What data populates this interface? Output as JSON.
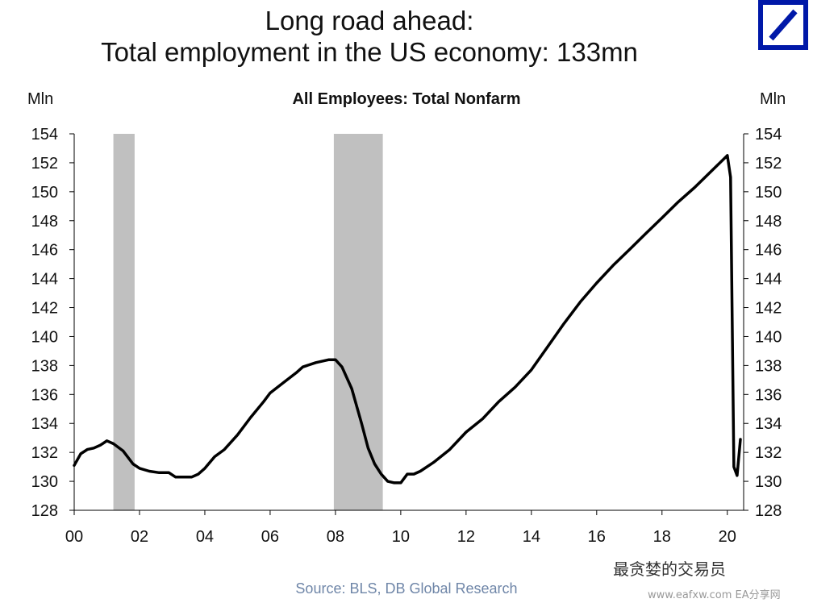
{
  "header": {
    "title_line1": "Long road ahead:",
    "title_line2": "Total employment in the US economy: 133mn"
  },
  "units": {
    "left": "Mln",
    "right": "Mln"
  },
  "source": "Source: BLS, DB Global Research",
  "watermark": {
    "text": "最贪婪的交易员",
    "url": "www.eafxw.com  EA分享网"
  },
  "colors": {
    "line": "#000000",
    "recession": "#c0c0c0",
    "logo": "#0018a8",
    "source": "#6f86a8"
  },
  "chart_data": {
    "type": "line",
    "title": "All Employees: Total Nonfarm",
    "ylabel": "Mln",
    "xlim": [
      2000,
      2020.5
    ],
    "ylim": [
      128,
      154
    ],
    "x_ticks": [
      2000,
      2002,
      2004,
      2006,
      2008,
      2010,
      2012,
      2014,
      2016,
      2018,
      2020
    ],
    "x_tick_labels": [
      "00",
      "02",
      "04",
      "06",
      "08",
      "10",
      "12",
      "14",
      "16",
      "18",
      "20"
    ],
    "y_ticks": [
      128,
      130,
      132,
      134,
      136,
      138,
      140,
      142,
      144,
      146,
      148,
      150,
      152,
      154
    ],
    "y_tick_labels": [
      "128",
      "130",
      "132",
      "134",
      "136",
      "138",
      "140",
      "142",
      "144",
      "146",
      "148",
      "150",
      "152",
      "154"
    ],
    "recessions": [
      [
        2001.2,
        2001.85
      ],
      [
        2007.95,
        2009.45
      ]
    ],
    "grid": false,
    "series": [
      {
        "x": [
          2000.0,
          2000.2,
          2000.4,
          2000.6,
          2000.8,
          2001.0,
          2001.2,
          2001.5,
          2001.8,
          2002.0,
          2002.3,
          2002.6,
          2002.9,
          2003.1,
          2003.3,
          2003.6,
          2003.8,
          2004.0,
          2004.3,
          2004.6,
          2005.0,
          2005.4,
          2005.8,
          2006.0,
          2006.4,
          2006.8,
          2007.0,
          2007.4,
          2007.8,
          2008.0,
          2008.2,
          2008.5,
          2008.8,
          2009.0,
          2009.2,
          2009.4,
          2009.6,
          2009.8,
          2010.0,
          2010.2,
          2010.4,
          2010.6,
          2011.0,
          2011.5,
          2012.0,
          2012.5,
          2013.0,
          2013.5,
          2014.0,
          2014.5,
          2015.0,
          2015.5,
          2016.0,
          2016.5,
          2017.0,
          2017.5,
          2018.0,
          2018.5,
          2019.0,
          2019.5,
          2020.0,
          2020.1,
          2020.2,
          2020.3,
          2020.4
        ],
        "y": [
          131.1,
          131.9,
          132.2,
          132.3,
          132.5,
          132.8,
          132.6,
          132.1,
          131.2,
          130.9,
          130.7,
          130.6,
          130.6,
          130.3,
          130.3,
          130.3,
          130.5,
          130.9,
          131.7,
          132.2,
          133.2,
          134.4,
          135.5,
          136.1,
          136.8,
          137.5,
          137.9,
          138.2,
          138.4,
          138.4,
          137.9,
          136.4,
          134.0,
          132.3,
          131.2,
          130.5,
          130.0,
          129.9,
          129.9,
          130.5,
          130.5,
          130.7,
          131.3,
          132.2,
          133.4,
          134.3,
          135.5,
          136.5,
          137.7,
          139.3,
          140.9,
          142.4,
          143.7,
          144.9,
          146.0,
          147.1,
          148.2,
          149.3,
          150.3,
          151.4,
          152.5,
          151.0,
          131.0,
          130.4,
          132.9
        ]
      }
    ]
  }
}
